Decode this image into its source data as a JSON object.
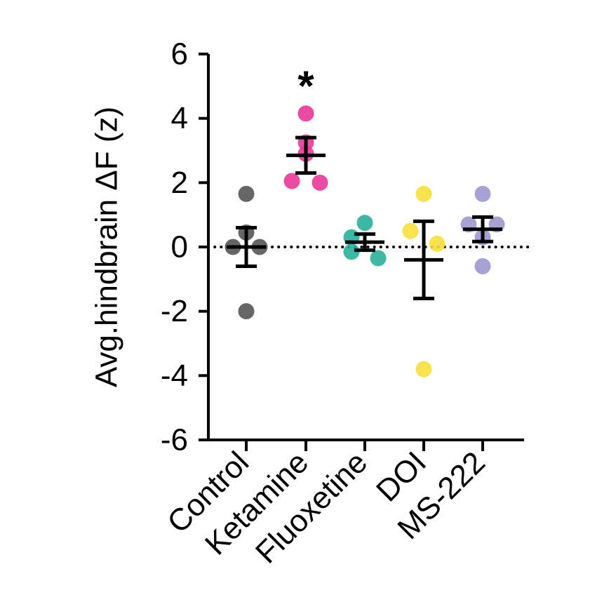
{
  "chart_data": {
    "type": "scatter",
    "ylabel": "Avg.hindbrain ΔF  (z)",
    "ylim": [
      -6,
      6
    ],
    "yticks": [
      -6,
      -4,
      -2,
      0,
      2,
      4,
      6
    ],
    "ytick_labels": [
      "-6",
      "-4",
      "-2",
      "0",
      "2",
      "4",
      "6"
    ],
    "categories": [
      "Control",
      "Ketamine",
      "Fluoxetine",
      "DOI",
      "MS-222"
    ],
    "reference_line": 0,
    "series": [
      {
        "category": "Control",
        "color": "#555555",
        "points": [
          1.65,
          0.45,
          0.0,
          0.0,
          -2.0
        ],
        "mean": 0.0,
        "sem": 0.6
      },
      {
        "category": "Ketamine",
        "color": "#e8399a",
        "points": [
          4.15,
          3.25,
          2.9,
          2.05,
          2.0
        ],
        "mean": 2.85,
        "sem": 0.55
      },
      {
        "category": "Fluoxetine",
        "color": "#27b09b",
        "points": [
          0.75,
          0.3,
          -0.15,
          -0.35
        ],
        "mean": 0.15,
        "sem": 0.25
      },
      {
        "category": "DOI",
        "color": "#f7e03c",
        "points": [
          1.65,
          0.5,
          0.1,
          -3.8
        ],
        "mean": -0.4,
        "sem": 1.2
      },
      {
        "category": "MS-222",
        "color": "#9d98cf",
        "points": [
          1.65,
          0.7,
          0.7,
          0.3,
          -0.6
        ],
        "mean": 0.55,
        "sem": 0.38
      }
    ],
    "annotations": [
      {
        "category": "Ketamine",
        "text": "*"
      }
    ]
  }
}
